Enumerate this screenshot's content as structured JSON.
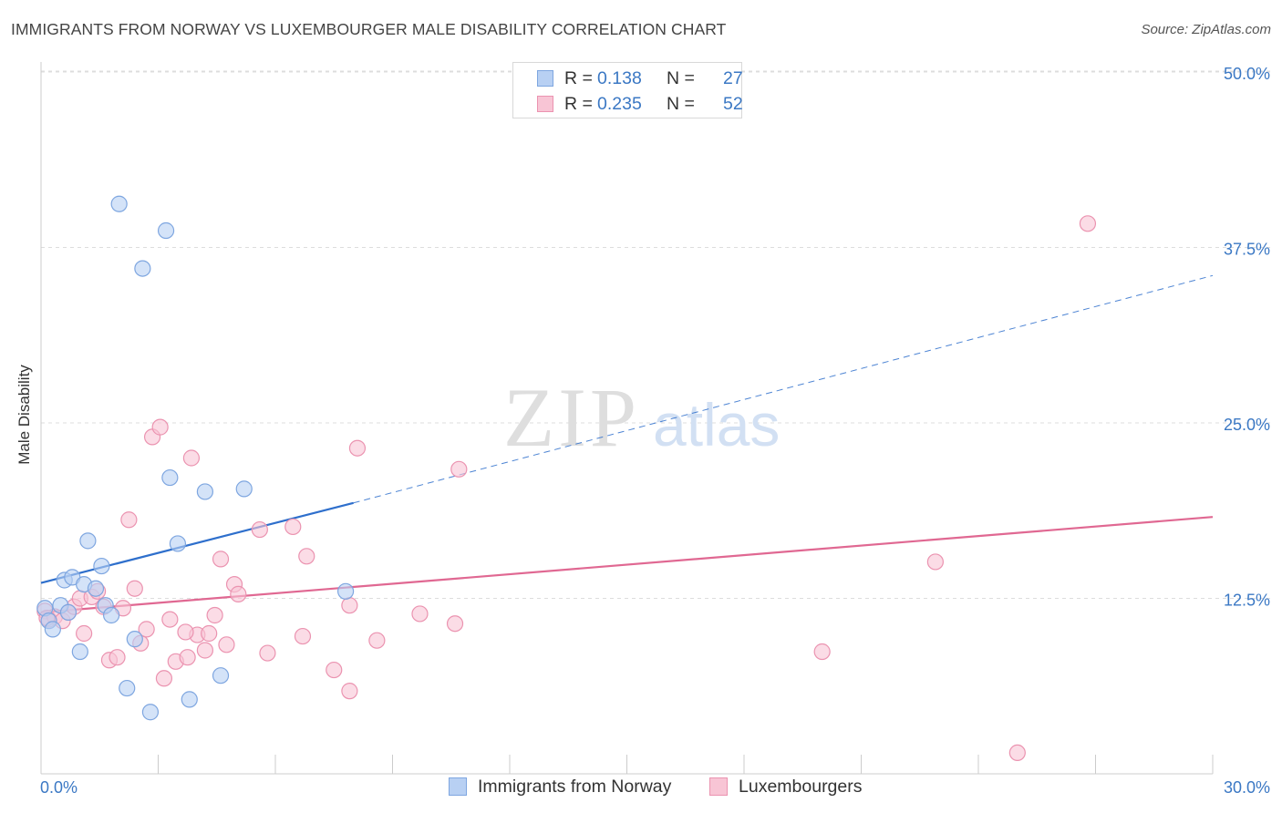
{
  "title": "IMMIGRANTS FROM NORWAY VS LUXEMBOURGER MALE DISABILITY CORRELATION CHART",
  "source": "Source: ZipAtlas.com",
  "watermark": {
    "zip": "ZIP",
    "atlas": "atlas"
  },
  "legend": {
    "r_label": "R =",
    "n_label": "N =",
    "norway": {
      "r": "0.138",
      "n": "27"
    },
    "luxembourg": {
      "r": "0.235",
      "n": "52"
    }
  },
  "colors": {
    "norway_fill": "#b8d0f3",
    "norway_stroke": "#7ea6e0",
    "norway_line": "#2e6fcc",
    "lux_fill": "#f8c5d5",
    "lux_stroke": "#eb93b0",
    "lux_line": "#e06892",
    "tick_text": "#3b78c4",
    "grid": "#dddddd"
  },
  "chart_data": {
    "type": "scatter",
    "title": "IMMIGRANTS FROM NORWAY VS LUXEMBOURGER MALE DISABILITY CORRELATION CHART",
    "xlabel": "",
    "ylabel": "Male Disability",
    "xlim": [
      0,
      30
    ],
    "ylim": [
      0,
      50
    ],
    "x_tick_labels": [
      "0.0%",
      "30.0%"
    ],
    "y_ticks": [
      12.5,
      25.0,
      37.5,
      50.0
    ],
    "y_tick_labels": [
      "12.5%",
      "25.0%",
      "37.5%",
      "50.0%"
    ],
    "series": [
      {
        "name": "Immigrants from Norway",
        "r": 0.138,
        "n": 27,
        "points": [
          [
            0.1,
            11.8
          ],
          [
            0.2,
            10.9
          ],
          [
            0.3,
            10.3
          ],
          [
            0.5,
            12.0
          ],
          [
            0.6,
            13.8
          ],
          [
            0.7,
            11.5
          ],
          [
            0.8,
            14.0
          ],
          [
            1.0,
            8.7
          ],
          [
            1.1,
            13.5
          ],
          [
            1.2,
            16.6
          ],
          [
            1.4,
            13.2
          ],
          [
            1.55,
            14.8
          ],
          [
            1.65,
            12.0
          ],
          [
            1.8,
            11.3
          ],
          [
            2.2,
            6.1
          ],
          [
            2.0,
            40.6
          ],
          [
            2.4,
            9.6
          ],
          [
            2.6,
            36.0
          ],
          [
            2.8,
            4.4
          ],
          [
            3.2,
            38.7
          ],
          [
            3.3,
            21.1
          ],
          [
            3.5,
            16.4
          ],
          [
            3.8,
            5.3
          ],
          [
            4.2,
            20.1
          ],
          [
            4.6,
            7.0
          ],
          [
            5.2,
            20.3
          ],
          [
            7.8,
            13.0
          ]
        ],
        "trend": {
          "x": [
            0,
            8.0,
            30
          ],
          "y": [
            13.6,
            19.3,
            35.5
          ]
        }
      },
      {
        "name": "Luxembourgers",
        "r": 0.235,
        "n": 52,
        "points": [
          [
            0.1,
            11.6
          ],
          [
            0.2,
            11.0
          ],
          [
            0.35,
            11.2
          ],
          [
            0.55,
            10.9
          ],
          [
            0.7,
            11.5
          ],
          [
            0.85,
            11.9
          ],
          [
            1.0,
            12.5
          ],
          [
            1.1,
            10.0
          ],
          [
            1.3,
            12.6
          ],
          [
            1.45,
            13.0
          ],
          [
            1.6,
            11.9
          ],
          [
            1.75,
            8.1
          ],
          [
            1.95,
            8.3
          ],
          [
            2.1,
            11.8
          ],
          [
            2.25,
            18.1
          ],
          [
            2.4,
            13.2
          ],
          [
            2.55,
            9.3
          ],
          [
            2.7,
            10.3
          ],
          [
            2.85,
            24.0
          ],
          [
            3.05,
            24.7
          ],
          [
            3.15,
            6.8
          ],
          [
            3.3,
            11.0
          ],
          [
            3.45,
            8.0
          ],
          [
            3.75,
            8.3
          ],
          [
            3.85,
            22.5
          ],
          [
            4.0,
            9.9
          ],
          [
            4.2,
            8.8
          ],
          [
            4.3,
            10.0
          ],
          [
            4.45,
            11.3
          ],
          [
            4.6,
            15.3
          ],
          [
            4.75,
            9.2
          ],
          [
            4.95,
            13.5
          ],
          [
            5.05,
            12.8
          ],
          [
            5.6,
            17.4
          ],
          [
            5.8,
            8.6
          ],
          [
            6.45,
            17.6
          ],
          [
            6.7,
            9.8
          ],
          [
            6.8,
            15.5
          ],
          [
            7.5,
            7.4
          ],
          [
            7.9,
            5.9
          ],
          [
            7.9,
            12.0
          ],
          [
            8.1,
            23.2
          ],
          [
            8.6,
            9.5
          ],
          [
            9.7,
            11.4
          ],
          [
            10.6,
            10.7
          ],
          [
            10.7,
            21.7
          ],
          [
            20.0,
            8.7
          ],
          [
            22.9,
            15.1
          ],
          [
            25.0,
            1.5
          ],
          [
            26.8,
            39.2
          ],
          [
            0.15,
            11.1
          ],
          [
            3.7,
            10.1
          ]
        ],
        "trend": {
          "x": [
            0,
            30
          ],
          "y": [
            11.5,
            18.3
          ]
        }
      }
    ]
  },
  "bottom_legend": {
    "norway": "Immigrants from Norway",
    "luxembourg": "Luxembourgers"
  }
}
